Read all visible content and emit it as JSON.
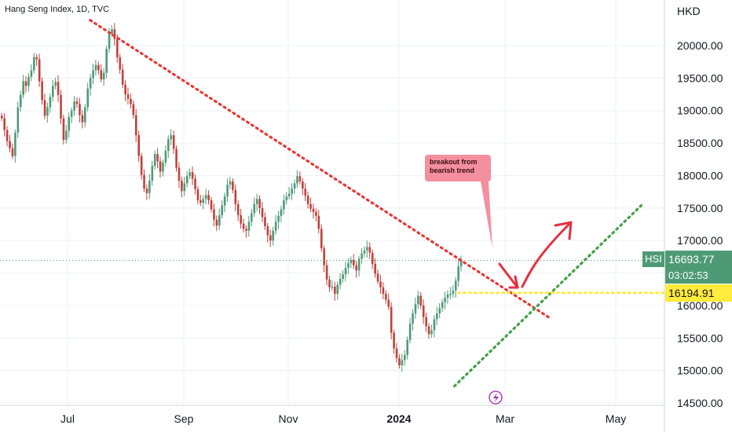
{
  "header": {
    "title": "Hang Seng Index, 1D, TVC",
    "currency": "HKD"
  },
  "tags": {
    "symbol": "HSI",
    "last_price": "16693.77",
    "countdown": "03:02:53",
    "level_price": "16194.91"
  },
  "annotation": {
    "text": "breakout from bearish trend"
  },
  "event_icon": "lightning-icon",
  "colors": {
    "up": "#4e9a76",
    "down": "#c0413b",
    "resistance": "#e53935",
    "support": "#43a047",
    "level": "#ffeb3b",
    "annotation": "#f48fa0",
    "arrow": "#e53040"
  },
  "chart_data": {
    "type": "candlestick",
    "symbol": "HSI",
    "interval": "1D",
    "x_ticks": [
      "Jul",
      "Sep",
      "Nov",
      "2024",
      "Mar",
      "May"
    ],
    "y_ticks": [
      "20000.00",
      "19500.00",
      "19000.00",
      "18500.00",
      "18000.00",
      "17500.00",
      "17000.00",
      "16500.00",
      "16000.00",
      "15500.00",
      "15000.00",
      "14500.00"
    ],
    "ylim": [
      14500,
      20500
    ],
    "grid": true,
    "candles_close": [
      18880,
      18700,
      18530,
      18420,
      18300,
      18660,
      19050,
      19240,
      19450,
      19380,
      19520,
      19620,
      19820,
      19790,
      19450,
      19160,
      18920,
      19050,
      19210,
      19380,
      19440,
      19240,
      18880,
      18550,
      18690,
      18900,
      19000,
      19140,
      19100,
      18930,
      18820,
      19050,
      19340,
      19500,
      19620,
      19700,
      19620,
      19480,
      19580,
      19950,
      20180,
      20250,
      20100,
      19820,
      19630,
      19400,
      19250,
      19180,
      19100,
      18930,
      18620,
      18300,
      18010,
      17800,
      17730,
      17920,
      18150,
      18330,
      18220,
      18060,
      18200,
      18380,
      18560,
      18620,
      18410,
      18120,
      17920,
      17760,
      17880,
      17990,
      18050,
      17950,
      17790,
      17620,
      17580,
      17640,
      17700,
      17620,
      17480,
      17320,
      17230,
      17390,
      17540,
      17680,
      17860,
      17910,
      17780,
      17560,
      17390,
      17260,
      17180,
      17150,
      17290,
      17420,
      17560,
      17640,
      17500,
      17360,
      17220,
      17080,
      17000,
      17150,
      17290,
      17380,
      17480,
      17620,
      17680,
      17720,
      17800,
      17880,
      17990,
      17910,
      17800,
      17690,
      17560,
      17490,
      17440,
      17380,
      17180,
      16880,
      16620,
      16400,
      16280,
      16290,
      16180,
      16320,
      16410,
      16480,
      16580,
      16650,
      16700,
      16620,
      16540,
      16720,
      16800,
      16850,
      16900,
      16810,
      16640,
      16490,
      16370,
      16280,
      16180,
      16090,
      15980,
      15580,
      15340,
      15190,
      15080,
      15160,
      15240,
      15470,
      15720,
      15880,
      16020,
      16150,
      16000,
      15820,
      15680,
      15560,
      15620,
      15790,
      15880,
      15960,
      16050,
      16120,
      16170,
      16180,
      16230,
      16380,
      16600,
      16694
    ],
    "series": [
      {
        "name": "resistance trendline",
        "type": "line",
        "style": "dotted",
        "color": "#e53935",
        "points": [
          {
            "x": "2023-07-13",
            "y": 20390
          },
          {
            "x": "2024-03-13",
            "y": 15800
          }
        ]
      },
      {
        "name": "support trendline",
        "type": "line",
        "style": "dotted",
        "color": "#43a047",
        "points": [
          {
            "x": "2024-01-22",
            "y": 14760
          },
          {
            "x": "2024-04-30",
            "y": 17540
          }
        ]
      },
      {
        "name": "level",
        "type": "hline",
        "style": "dotted",
        "color": "#ffeb3b",
        "y": 16194.91
      }
    ],
    "last_price": 16693.77
  }
}
